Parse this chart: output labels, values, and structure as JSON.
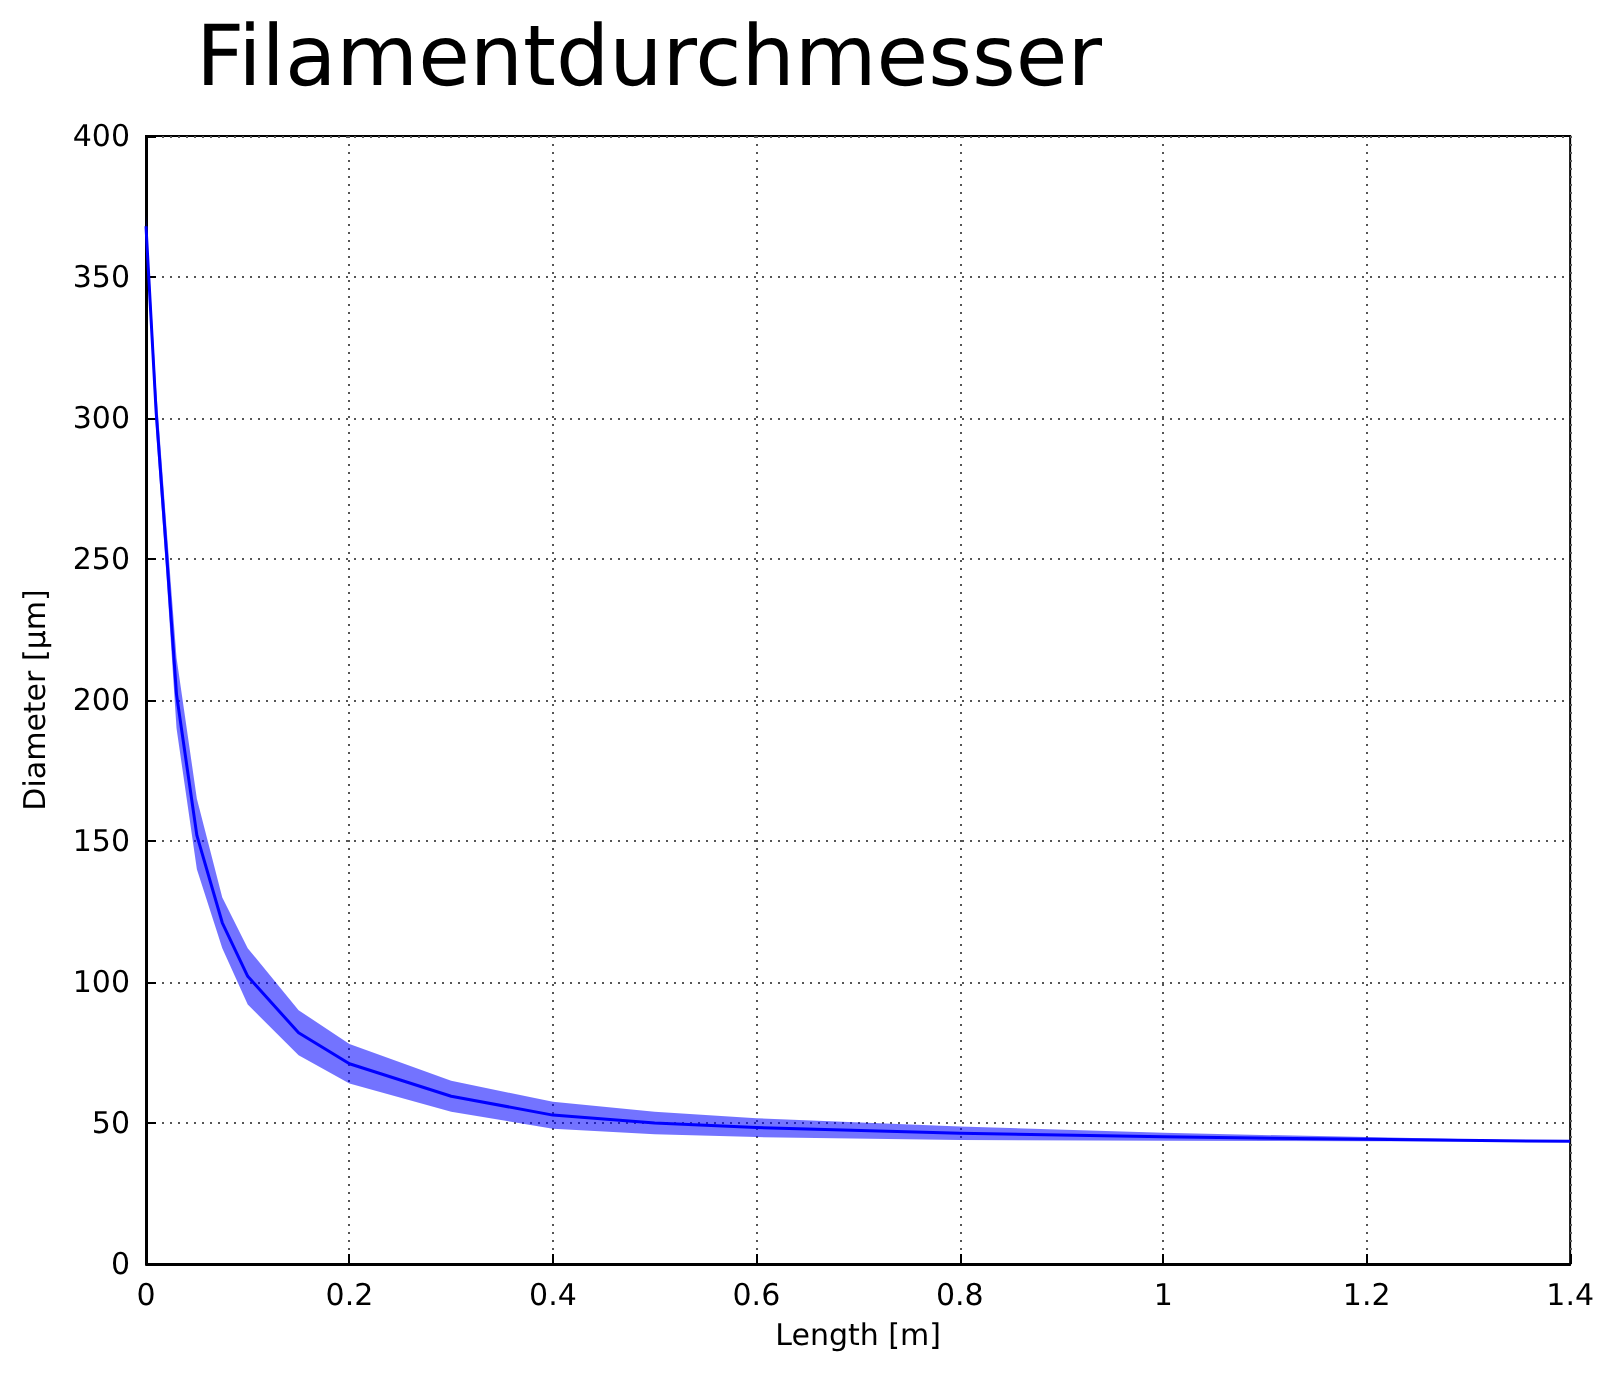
{
  "chart_data": {
    "type": "line",
    "title": "Filamentdurchmesser",
    "xlabel": "Length [m]",
    "ylabel": "Diameter [µm]",
    "x": [
      0,
      0.01,
      0.02,
      0.03,
      0.05,
      0.075,
      0.1,
      0.15,
      0.2,
      0.3,
      0.4,
      0.5,
      0.6,
      0.8,
      1.0,
      1.2,
      1.4
    ],
    "series": [
      {
        "color": "#0000ff",
        "values": [
          368,
          302,
          253,
          202,
          152,
          121,
          102,
          82,
          71,
          59.5,
          52.8,
          50,
          48.4,
          46.4,
          45.1,
          44.2,
          43.5
        ],
        "lower": [
          365,
          295,
          245,
          190,
          140,
          112,
          92,
          74,
          64,
          54,
          48,
          46,
          45,
          44,
          43.7,
          43.5,
          43.5
        ],
        "upper": [
          372,
          310,
          262,
          215,
          165,
          130,
          112,
          90,
          78,
          65,
          57.5,
          54,
          51.7,
          48.8,
          46.5,
          45,
          43.5
        ]
      }
    ],
    "xlim": [
      0,
      1.4
    ],
    "xticks": [
      0,
      0.2,
      0.4,
      0.6,
      0.8,
      1,
      1.2,
      1.4
    ],
    "ylim": [
      0,
      400
    ],
    "yticks": [
      0,
      50,
      100,
      150,
      200,
      250,
      300,
      350,
      400
    ],
    "grid": true,
    "marker": "none",
    "line_style": "solid"
  }
}
